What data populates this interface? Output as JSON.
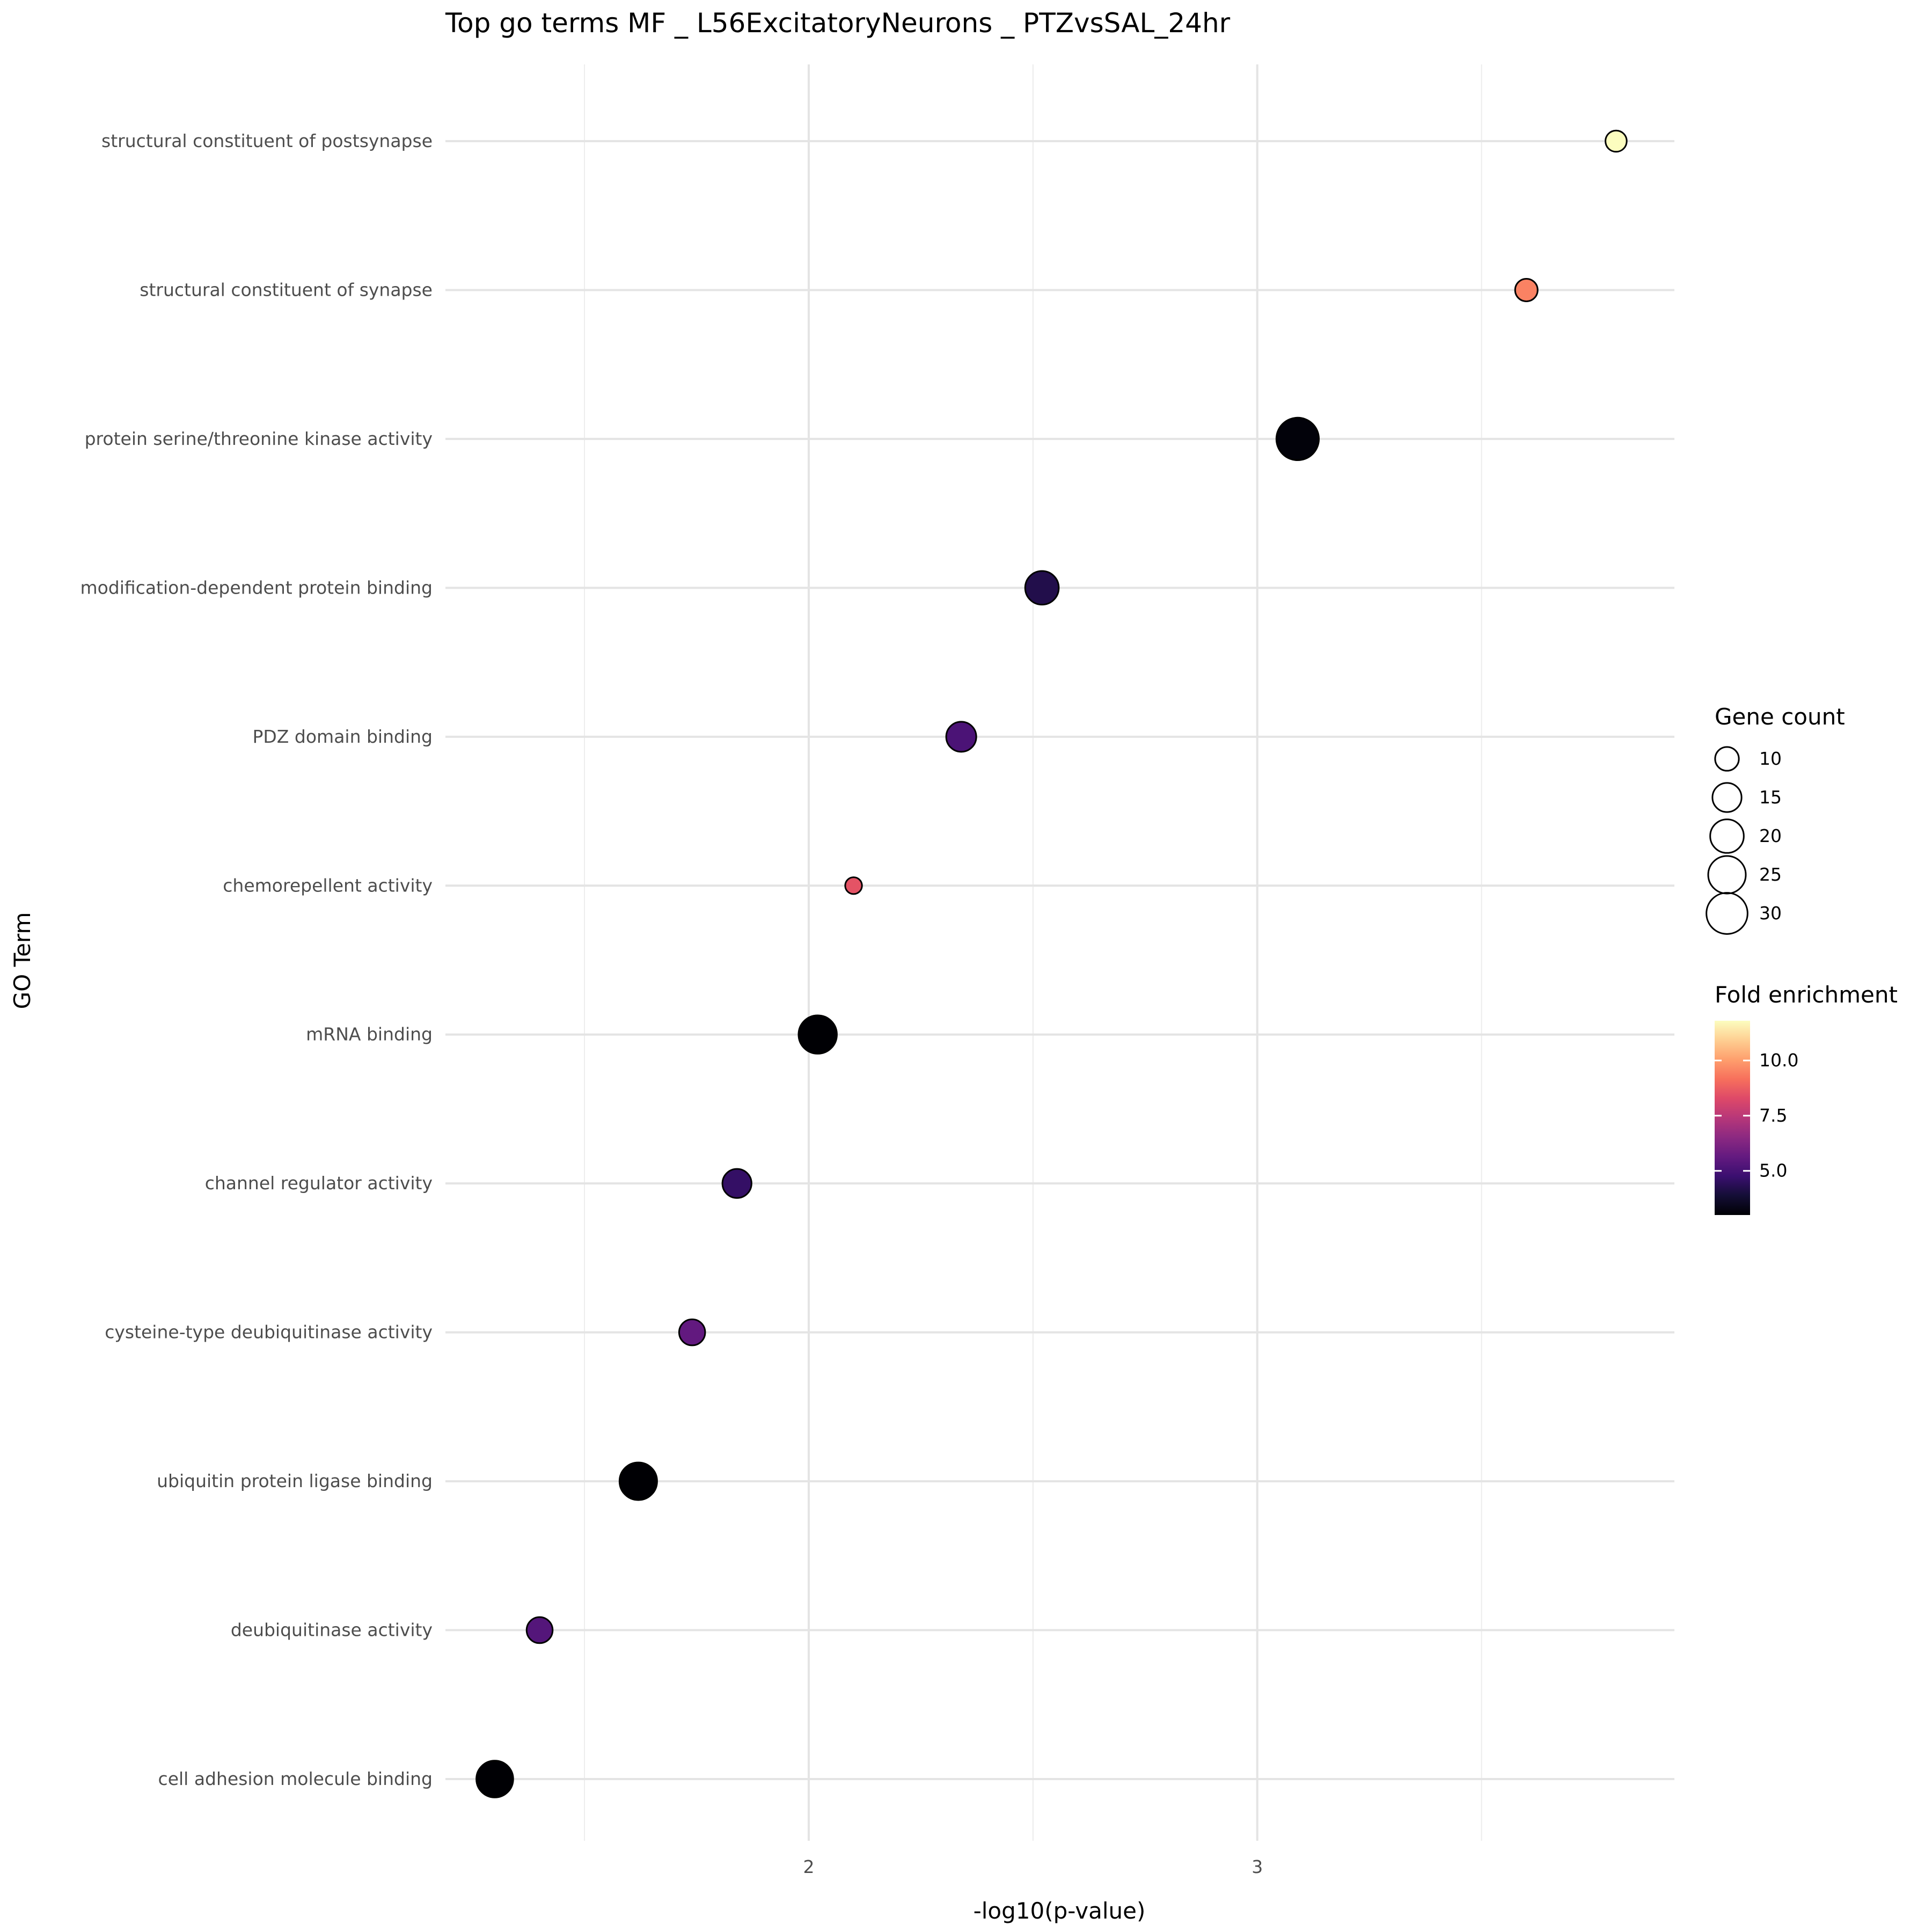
{
  "chart_data": {
    "type": "scatter",
    "title": "Top go terms  MF _ L56ExcitatoryNeurons _ PTZvsSAL_24hr",
    "xlabel": "-log10(p-value)",
    "ylabel": "GO Term",
    "xlim": [
      1.19,
      3.93
    ],
    "x_ticks": [
      2,
      3
    ],
    "x_minor_gridlines": [
      1.5,
      2.5,
      3.5
    ],
    "grid": true,
    "categories": [
      "structural constituent of postsynapse",
      "structural constituent of synapse",
      "protein serine/threonine kinase activity",
      "modification-dependent protein binding",
      "PDZ domain binding",
      "chemorepellent activity",
      "mRNA binding",
      "channel regulator activity",
      "cysteine-type deubiquitinase activity",
      "ubiquitin protein ligase binding",
      "deubiquitinase activity",
      "cell adhesion molecule binding"
    ],
    "points": [
      {
        "term": "structural constituent of postsynapse",
        "x": 3.8,
        "gene_count": 8,
        "fold_enrichment": 11.8
      },
      {
        "term": "structural constituent of synapse",
        "x": 3.6,
        "gene_count": 9,
        "fold_enrichment": 9.5
      },
      {
        "term": "protein serine/threonine kinase activity",
        "x": 3.09,
        "gene_count": 32,
        "fold_enrichment": 3.1
      },
      {
        "term": "modification-dependent protein binding",
        "x": 2.52,
        "gene_count": 20,
        "fold_enrichment": 4.2
      },
      {
        "term": "PDZ domain binding",
        "x": 2.34,
        "gene_count": 16,
        "fold_enrichment": 5.1
      },
      {
        "term": "chemorepellent activity",
        "x": 2.1,
        "gene_count": 5,
        "fold_enrichment": 8.5
      },
      {
        "term": "mRNA binding",
        "x": 2.02,
        "gene_count": 26,
        "fold_enrichment": 3.0
      },
      {
        "term": "channel regulator activity",
        "x": 1.84,
        "gene_count": 15,
        "fold_enrichment": 4.6
      },
      {
        "term": "cysteine-type deubiquitinase activity",
        "x": 1.74,
        "gene_count": 12,
        "fold_enrichment": 5.6
      },
      {
        "term": "ubiquitin protein ligase binding",
        "x": 1.62,
        "gene_count": 25,
        "fold_enrichment": 3.0
      },
      {
        "term": "deubiquitinase activity",
        "x": 1.4,
        "gene_count": 12,
        "fold_enrichment": 5.3
      },
      {
        "term": "cell adhesion molecule binding",
        "x": 1.3,
        "gene_count": 24,
        "fold_enrichment": 3.0
      }
    ],
    "size_legend": {
      "title": "Gene count",
      "values": [
        10,
        15,
        20,
        25,
        30
      ],
      "labels": [
        "10",
        "15",
        "20",
        "25",
        "30"
      ]
    },
    "color_legend": {
      "title": "Fold enrichment",
      "palette": "magma",
      "range": [
        3.0,
        11.8
      ],
      "ticks": [
        5.0,
        7.5,
        10.0
      ],
      "tick_labels": [
        "5.0",
        "7.5",
        "10.0"
      ],
      "colors": [
        "#000004",
        "#140e36",
        "#3b0f70",
        "#641a80",
        "#8c2981",
        "#b73779",
        "#de4968",
        "#f7705c",
        "#fe9f6d",
        "#fecf92",
        "#fcfdbf"
      ]
    },
    "legend_position": "right"
  }
}
